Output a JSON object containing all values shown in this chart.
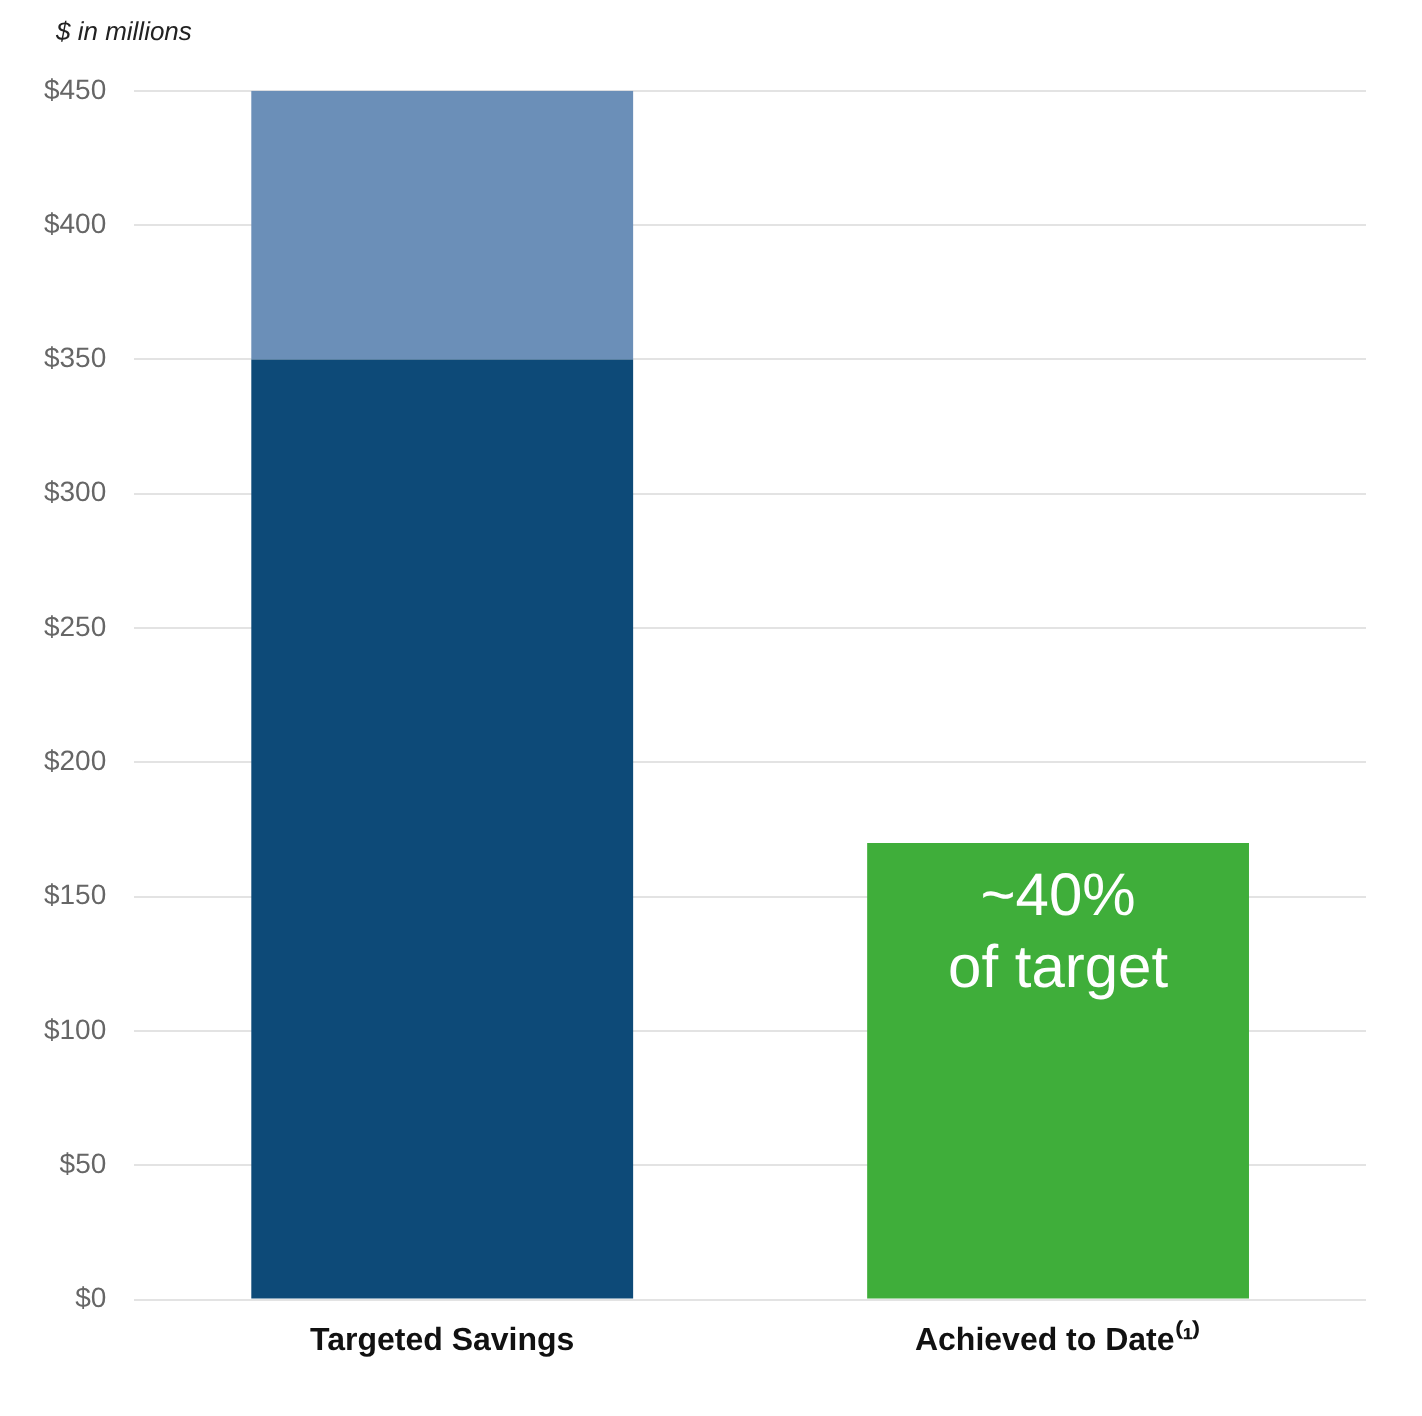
{
  "chart_data": {
    "type": "bar",
    "ylabel": "$ in millions",
    "categories": [
      "Targeted Savings",
      "Achieved to Date⁽¹⁾"
    ],
    "stacked": true,
    "series": [
      {
        "colors": [
          "#0d4a78",
          "#3fae3a"
        ],
        "values": [
          350,
          170
        ]
      },
      {
        "colors": [
          "#6b8fb8",
          "#6b8fb8"
        ],
        "values": [
          100,
          null
        ]
      }
    ],
    "ylim": [
      0,
      450
    ],
    "yticks": [
      {
        "value": 0,
        "label": "$0"
      },
      {
        "value": 50,
        "label": "$50"
      },
      {
        "value": 100,
        "label": "$100"
      },
      {
        "value": 150,
        "label": "$150"
      },
      {
        "value": 200,
        "label": "$200"
      },
      {
        "value": 250,
        "label": "$250"
      },
      {
        "value": 300,
        "label": "$300"
      },
      {
        "value": 350,
        "label": "$350"
      },
      {
        "value": 400,
        "label": "$400"
      },
      {
        "value": 450,
        "label": "$450"
      }
    ],
    "grid": "y",
    "legend": false,
    "annotations": [
      "~40%",
      "of target"
    ]
  }
}
